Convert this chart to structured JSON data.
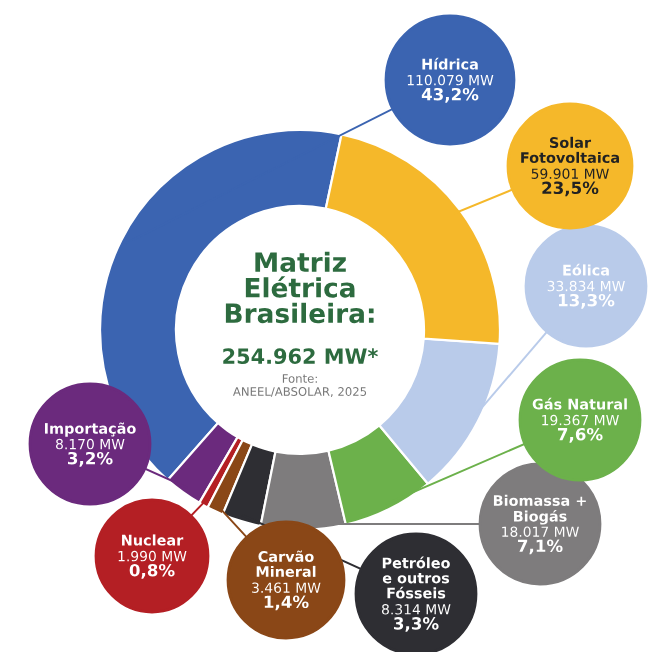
{
  "chart_data": {
    "type": "donut",
    "title": "Matriz\nElétrica\nBrasileira:",
    "subtitle": "254.962 MW*",
    "annotations": [
      "Fonte:\nANEEL/ABSOLAR, 2025"
    ],
    "categories": [
      "Hídrica",
      "Importação",
      "Nuclear",
      "Carvão\nMineral",
      "Petróleo\ne outros\nFósseis",
      "Biomassa +\nBiogás",
      "Gás Natural",
      "Eólica",
      "Solar\nFotovoltaica"
    ],
    "values": [
      110079,
      8170,
      1990,
      3461,
      8314,
      18017,
      19367,
      33834,
      59901
    ],
    "value_labels": [
      "110.079 MW\n43,2%",
      "8.170 MW\n3,2%",
      "1.990 MW\n0,8%",
      "3.461 MW\n1,4%",
      "8.314 MW\n3,3%",
      "18.017 MW\n7,1%",
      "19.367 MW\n7,6%",
      "33.834 MW\n13,3%",
      "59.901 MW\n23,5%"
    ],
    "colors": [
      "#3b64b1",
      "#6b2a7d",
      "#b41f24",
      "#8a4717",
      "#2e2e33",
      "#7e7c7d",
      "#6cb14b",
      "#b9cbea",
      "#f5b82a"
    ]
  }
}
